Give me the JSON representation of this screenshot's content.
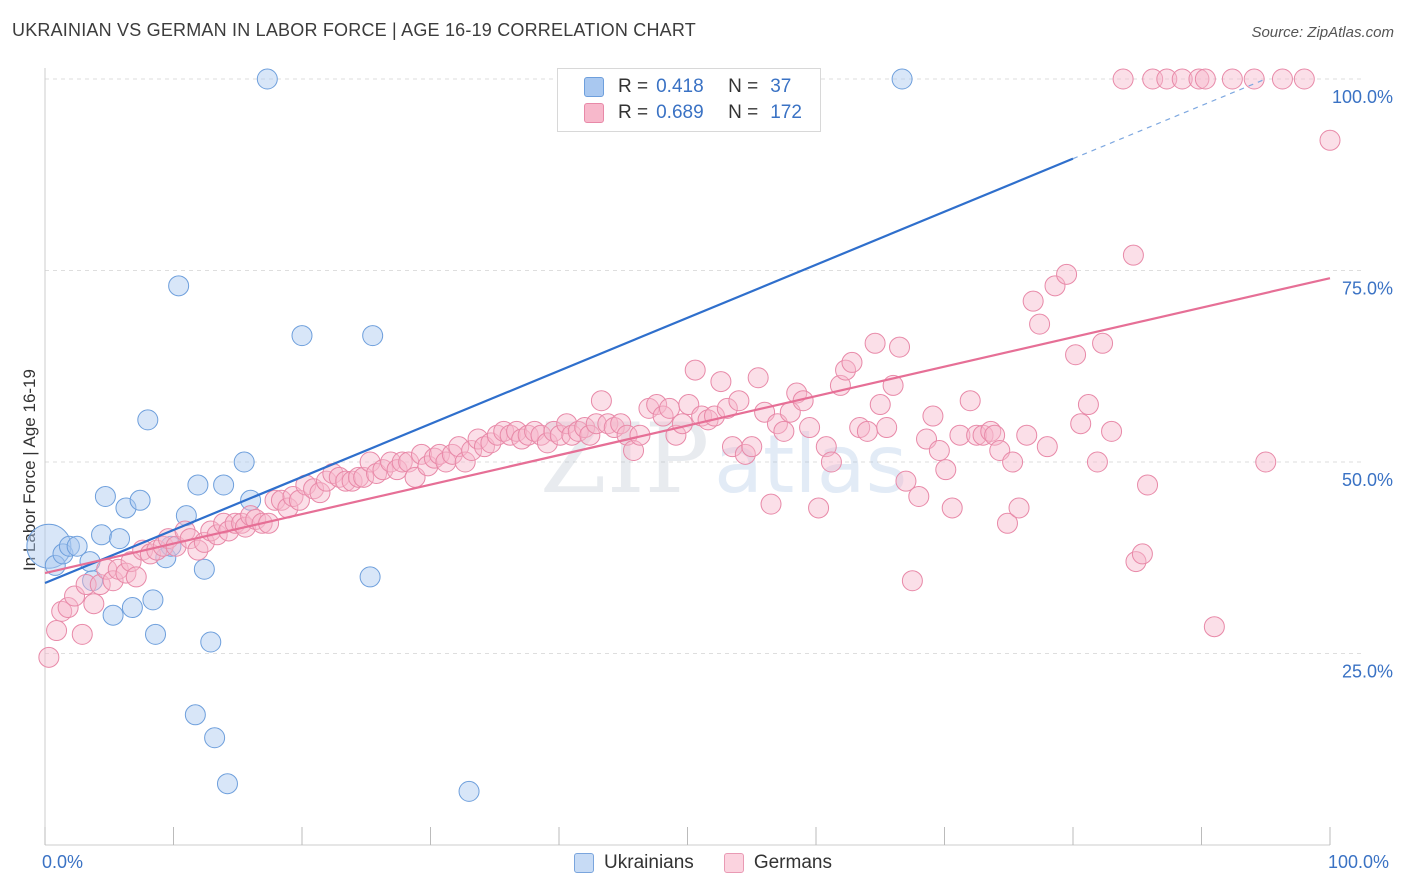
{
  "header": {
    "title": "UKRAINIAN VS GERMAN IN LABOR FORCE | AGE 16-19 CORRELATION CHART",
    "source": "Source: ZipAtlas.com"
  },
  "watermark": {
    "zip": "ZIP",
    "atlas": "atlas"
  },
  "legend": {
    "r_label": "R =",
    "n_label": "N =",
    "rows": [
      {
        "r": "0.418",
        "n": "37",
        "color": "#a9c8f0",
        "border": "#6e9fdc"
      },
      {
        "r": "0.689",
        "n": "172",
        "color": "#f7b8cb",
        "border": "#e889a8"
      }
    ]
  },
  "bottom_legend": [
    {
      "label": "Ukrainians",
      "color": "#c7dbf5",
      "border": "#7aa5dd"
    },
    {
      "label": "Germans",
      "color": "#fbd3df",
      "border": "#e99ab4"
    }
  ],
  "chart_data": {
    "type": "scatter",
    "title": "UKRAINIAN VS GERMAN IN LABOR FORCE | AGE 16-19 CORRELATION CHART",
    "xlabel": "",
    "ylabel": "In Labor Force | Age 16-19",
    "xlim": [
      0,
      100
    ],
    "ylim": [
      0,
      100
    ],
    "x_tick_labels": [
      "0.0%",
      "100.0%"
    ],
    "y_tick_labels": [
      "25.0%",
      "50.0%",
      "75.0%",
      "100.0%"
    ],
    "y_ticks": [
      25,
      50,
      75,
      100
    ],
    "grid": true,
    "series": [
      {
        "name": "Ukrainians",
        "color": "#6e9fdc",
        "fill": "#a9c8f0",
        "r": 0.418,
        "n": 37,
        "trend": {
          "x0": 0,
          "y0": 34.2,
          "x1": 80,
          "y1": 89.6,
          "dashed_to_x": 95,
          "dashed_to_y": 100
        },
        "points": [
          [
            0.3,
            39
          ],
          [
            0.8,
            36.5
          ],
          [
            1.4,
            38
          ],
          [
            1.9,
            39
          ],
          [
            2.5,
            39
          ],
          [
            3.5,
            37
          ],
          [
            3.7,
            34.5
          ],
          [
            4.4,
            40.5
          ],
          [
            4.7,
            45.5
          ],
          [
            5.3,
            30
          ],
          [
            5.8,
            40
          ],
          [
            6.3,
            44
          ],
          [
            6.8,
            31
          ],
          [
            7.4,
            45
          ],
          [
            8.0,
            55.5
          ],
          [
            8.4,
            32
          ],
          [
            8.6,
            27.5
          ],
          [
            9.4,
            37.5
          ],
          [
            9.8,
            39
          ],
          [
            10.4,
            73
          ],
          [
            11.0,
            43
          ],
          [
            11.7,
            17
          ],
          [
            11.9,
            47
          ],
          [
            12.4,
            36
          ],
          [
            12.9,
            26.5
          ],
          [
            13.2,
            14
          ],
          [
            13.9,
            47
          ],
          [
            14.2,
            8
          ],
          [
            15.5,
            50
          ],
          [
            16.0,
            45
          ],
          [
            17.3,
            100
          ],
          [
            20.0,
            66.5
          ],
          [
            25.3,
            35
          ],
          [
            25.5,
            66.5
          ],
          [
            33.0,
            7
          ],
          [
            66.7,
            100
          ]
        ],
        "point_sizes": [
          22,
          10,
          10,
          10,
          10,
          10,
          10,
          10,
          10,
          10,
          10,
          10,
          10,
          10,
          10,
          10,
          10,
          10,
          10,
          10,
          10,
          10,
          10,
          10,
          10,
          10,
          10,
          10,
          10,
          10,
          10,
          10,
          10,
          10,
          10,
          10
        ]
      },
      {
        "name": "Germans",
        "color": "#e889a8",
        "fill": "#f7b8cb",
        "r": 0.689,
        "n": 172,
        "trend": {
          "x0": 0,
          "y0": 35.5,
          "x1": 100,
          "y1": 74
        },
        "points": [
          [
            0.3,
            24.5
          ],
          [
            0.9,
            28
          ],
          [
            1.3,
            30.5
          ],
          [
            1.8,
            31
          ],
          [
            2.3,
            32.5
          ],
          [
            2.9,
            27.5
          ],
          [
            3.2,
            34
          ],
          [
            3.8,
            31.5
          ],
          [
            4.3,
            34
          ],
          [
            4.8,
            36
          ],
          [
            5.3,
            34.5
          ],
          [
            5.7,
            36
          ],
          [
            6.3,
            35.5
          ],
          [
            6.7,
            37
          ],
          [
            7.1,
            35
          ],
          [
            7.6,
            38.5
          ],
          [
            8.2,
            38
          ],
          [
            8.7,
            38.5
          ],
          [
            9.2,
            39
          ],
          [
            9.6,
            40
          ],
          [
            10.2,
            39
          ],
          [
            10.9,
            41
          ],
          [
            11.3,
            40
          ],
          [
            11.9,
            38.5
          ],
          [
            12.4,
            39.5
          ],
          [
            12.9,
            41
          ],
          [
            13.4,
            40.5
          ],
          [
            13.9,
            42
          ],
          [
            14.3,
            41
          ],
          [
            14.8,
            42
          ],
          [
            15.3,
            42
          ],
          [
            15.6,
            41.5
          ],
          [
            16.0,
            43
          ],
          [
            16.4,
            42.5
          ],
          [
            16.9,
            42
          ],
          [
            17.4,
            42
          ],
          [
            17.9,
            45
          ],
          [
            18.4,
            45
          ],
          [
            18.9,
            44
          ],
          [
            19.3,
            45.5
          ],
          [
            19.8,
            45
          ],
          [
            20.3,
            47
          ],
          [
            20.9,
            46.5
          ],
          [
            21.4,
            46
          ],
          [
            21.9,
            47.5
          ],
          [
            22.4,
            48.5
          ],
          [
            22.9,
            48
          ],
          [
            23.4,
            47.5
          ],
          [
            23.9,
            47.5
          ],
          [
            24.4,
            48
          ],
          [
            24.8,
            48
          ],
          [
            25.3,
            50
          ],
          [
            25.8,
            48.5
          ],
          [
            26.3,
            49
          ],
          [
            26.9,
            50
          ],
          [
            27.4,
            49
          ],
          [
            27.8,
            50
          ],
          [
            28.3,
            50
          ],
          [
            28.8,
            48
          ],
          [
            29.3,
            51
          ],
          [
            29.8,
            49.5
          ],
          [
            30.3,
            50.5
          ],
          [
            30.7,
            51
          ],
          [
            31.2,
            50
          ],
          [
            31.7,
            51
          ],
          [
            32.2,
            52
          ],
          [
            32.7,
            50
          ],
          [
            33.2,
            51.5
          ],
          [
            33.7,
            53
          ],
          [
            34.2,
            52
          ],
          [
            34.7,
            52.5
          ],
          [
            35.2,
            53.5
          ],
          [
            35.7,
            54
          ],
          [
            36.2,
            53.5
          ],
          [
            36.7,
            54
          ],
          [
            37.1,
            53
          ],
          [
            37.6,
            53.5
          ],
          [
            38.1,
            54
          ],
          [
            38.6,
            53.5
          ],
          [
            39.1,
            52.5
          ],
          [
            39.6,
            54
          ],
          [
            40.1,
            53.5
          ],
          [
            40.6,
            55
          ],
          [
            41.0,
            53.5
          ],
          [
            41.5,
            54
          ],
          [
            42.0,
            54.5
          ],
          [
            42.4,
            53.5
          ],
          [
            42.9,
            55
          ],
          [
            43.3,
            58
          ],
          [
            43.8,
            55
          ],
          [
            44.3,
            54.5
          ],
          [
            44.8,
            55
          ],
          [
            45.3,
            53.5
          ],
          [
            45.8,
            51.5
          ],
          [
            46.3,
            53.5
          ],
          [
            47.0,
            57
          ],
          [
            47.6,
            57.5
          ],
          [
            48.1,
            56
          ],
          [
            48.6,
            57
          ],
          [
            49.1,
            53.5
          ],
          [
            49.6,
            55
          ],
          [
            50.1,
            57.5
          ],
          [
            50.6,
            62
          ],
          [
            51.1,
            56
          ],
          [
            51.6,
            55.5
          ],
          [
            52.1,
            56
          ],
          [
            52.6,
            60.5
          ],
          [
            53.1,
            57
          ],
          [
            53.5,
            52
          ],
          [
            54.0,
            58
          ],
          [
            54.5,
            51
          ],
          [
            55.0,
            52
          ],
          [
            55.5,
            61
          ],
          [
            56.0,
            56.5
          ],
          [
            56.5,
            44.5
          ],
          [
            57.0,
            55
          ],
          [
            57.5,
            54
          ],
          [
            58.0,
            56.5
          ],
          [
            58.5,
            59
          ],
          [
            59.0,
            58
          ],
          [
            59.5,
            54.5
          ],
          [
            60.2,
            44
          ],
          [
            60.8,
            52
          ],
          [
            61.2,
            50
          ],
          [
            61.9,
            60
          ],
          [
            62.3,
            62
          ],
          [
            62.8,
            63
          ],
          [
            63.4,
            54.5
          ],
          [
            64.0,
            54
          ],
          [
            64.6,
            65.5
          ],
          [
            65.0,
            57.5
          ],
          [
            65.5,
            54.5
          ],
          [
            66.0,
            60
          ],
          [
            66.5,
            65
          ],
          [
            67.0,
            47.5
          ],
          [
            67.5,
            34.5
          ],
          [
            68.0,
            45.5
          ],
          [
            68.6,
            53
          ],
          [
            69.1,
            56
          ],
          [
            69.6,
            51.5
          ],
          [
            70.1,
            49
          ],
          [
            70.6,
            44
          ],
          [
            71.2,
            53.5
          ],
          [
            72.0,
            58
          ],
          [
            72.5,
            53.5
          ],
          [
            73.0,
            53.5
          ],
          [
            73.6,
            54
          ],
          [
            73.9,
            53.5
          ],
          [
            74.3,
            51.5
          ],
          [
            74.9,
            42
          ],
          [
            75.3,
            50
          ],
          [
            75.8,
            44
          ],
          [
            76.4,
            53.5
          ],
          [
            76.9,
            71
          ],
          [
            77.4,
            68
          ],
          [
            78.0,
            52
          ],
          [
            78.6,
            73
          ],
          [
            79.5,
            74.5
          ],
          [
            80.2,
            64
          ],
          [
            80.6,
            55
          ],
          [
            81.2,
            57.5
          ],
          [
            81.9,
            50
          ],
          [
            82.3,
            65.5
          ],
          [
            83.0,
            54
          ],
          [
            83.9,
            100
          ],
          [
            84.7,
            77
          ],
          [
            84.9,
            37
          ],
          [
            85.4,
            38
          ],
          [
            85.8,
            47
          ],
          [
            86.2,
            100
          ],
          [
            87.3,
            100
          ],
          [
            88.5,
            100
          ],
          [
            89.8,
            100
          ],
          [
            90.3,
            100
          ],
          [
            91.0,
            28.5
          ],
          [
            92.4,
            100
          ],
          [
            94.1,
            100
          ],
          [
            95.0,
            50
          ],
          [
            96.3,
            100
          ],
          [
            98.0,
            100
          ],
          [
            100,
            92
          ]
        ],
        "point_sizes": [
          10
        ]
      }
    ]
  }
}
